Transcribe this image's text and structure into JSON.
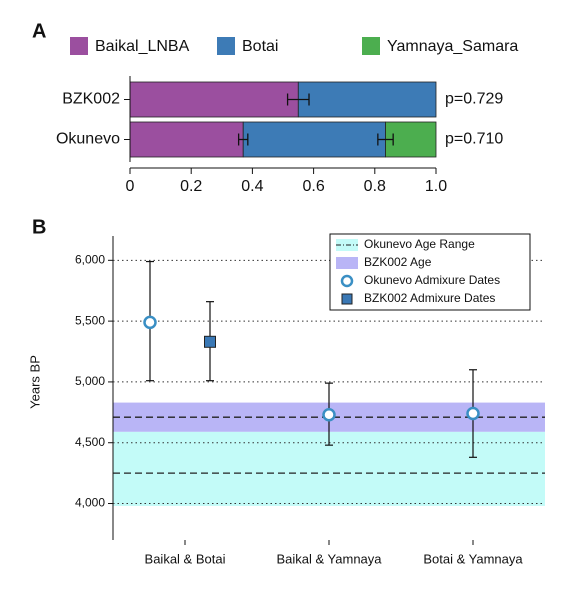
{
  "chart_data": [
    {
      "type": "stacked_barh",
      "panel": "A",
      "categories": [
        "BZK002",
        "Okunevo"
      ],
      "series": [
        {
          "name": "Baikal_LNBA",
          "color": "#9b4f9f",
          "values": [
            0.55,
            0.37
          ],
          "errors": [
            0.035,
            0.015
          ]
        },
        {
          "name": "Botai",
          "color": "#3d7bb6",
          "values": [
            0.45,
            0.465
          ],
          "errors": [
            null,
            0.025
          ]
        },
        {
          "name": "Yamnaya_Samara",
          "color": "#4cae4f",
          "values": [
            0,
            0.165
          ],
          "errors": [
            null,
            null
          ]
        }
      ],
      "annotations": [
        "p=0.729",
        "p=0.710"
      ],
      "xlim": [
        0,
        1
      ],
      "xticks": [
        0,
        0.2,
        0.4,
        0.6,
        0.8,
        {
          "value": 1,
          "label": "1.0"
        }
      ]
    },
    {
      "type": "range_scatter",
      "panel": "B",
      "ylabel": "Years BP",
      "categories": [
        "Baikal & Botai",
        "Baikal & Yamnaya",
        "Botai & Yamnaya"
      ],
      "ylim": [
        3700,
        6200
      ],
      "yticks": [
        {
          "value": 4000,
          "label": "4,000"
        },
        {
          "value": 4500,
          "label": "4,500"
        },
        {
          "value": 5000,
          "label": "5,000"
        },
        {
          "value": 5500,
          "label": "5,500"
        },
        {
          "value": 6000,
          "label": "6,000"
        }
      ],
      "grid": true,
      "bands": [
        {
          "name": "Okunevo Age Range",
          "color": "#c3fbf8",
          "range": [
            3980,
            4590
          ],
          "lines": [
            4250,
            4710
          ]
        },
        {
          "name": "BZK002 Age",
          "color": "#b9b5f6",
          "range": [
            4590,
            4830
          ]
        }
      ],
      "series": [
        {
          "name": "Okunevo Admixure Dates",
          "marker": "circle",
          "color": "#3a8fc4",
          "values": [
            5490,
            4730,
            4740
          ],
          "low": [
            5010,
            4480,
            4380
          ],
          "high": [
            5990,
            4990,
            5100
          ]
        },
        {
          "name": "BZK002 Admixure Dates",
          "marker": "square",
          "color": "#3a78b5",
          "values": [
            5330,
            null,
            null
          ],
          "low": [
            5010,
            null,
            null
          ],
          "high": [
            5660,
            null,
            null
          ]
        }
      ]
    }
  ]
}
